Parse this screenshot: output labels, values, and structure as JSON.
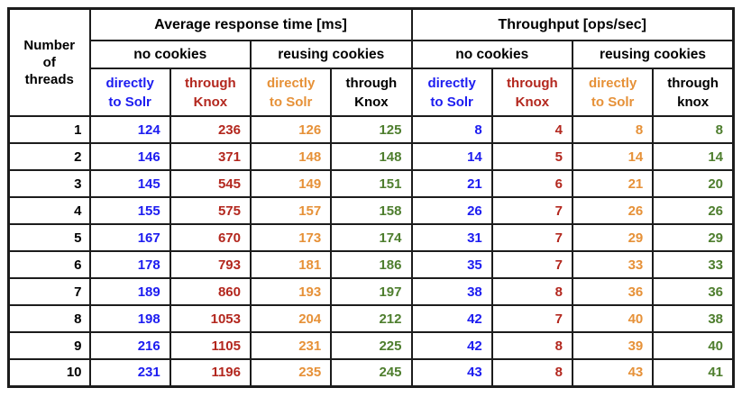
{
  "colors": {
    "blue_direct_solr": "#1c1cf0",
    "red_through_knox": "#b3271e",
    "orange_direct_solr_cookies": "#e69138",
    "green_through_knox_cookies": "#4e7e2e",
    "header_black": "#000000",
    "border": "#1c1c1c"
  },
  "table": {
    "corner_header": {
      "line1": "Number",
      "line2": "of",
      "line3": "threads"
    },
    "groups": [
      {
        "label": "Average response time [ms]"
      },
      {
        "label": "Throughput [ops/sec]"
      }
    ],
    "subgroups": [
      "no cookies",
      "reusing cookies",
      "no cookies",
      "reusing cookies"
    ],
    "columns": [
      {
        "id": "rt-nocookies-direct",
        "label_line1": "directly",
        "label_line2": "to Solr",
        "header_color": "#1c1cf0",
        "data_color": "#1c1cf0"
      },
      {
        "id": "rt-nocookies-knox",
        "label_line1": "through",
        "label_line2": "Knox",
        "header_color": "#b3271e",
        "data_color": "#b3271e"
      },
      {
        "id": "rt-cookies-direct",
        "label_line1": "directly",
        "label_line2": "to Solr",
        "header_color": "#e69138",
        "data_color": "#e69138"
      },
      {
        "id": "rt-cookies-knox",
        "label_line1": "through",
        "label_line2": "Knox",
        "header_color": "#000000",
        "data_color": "#4e7e2e"
      },
      {
        "id": "tp-nocookies-direct",
        "label_line1": "directly",
        "label_line2": "to Solr",
        "header_color": "#1c1cf0",
        "data_color": "#1c1cf0"
      },
      {
        "id": "tp-nocookies-knox",
        "label_line1": "through",
        "label_line2": "Knox",
        "header_color": "#b3271e",
        "data_color": "#b3271e"
      },
      {
        "id": "tp-cookies-direct",
        "label_line1": "directly",
        "label_line2": "to Solr",
        "header_color": "#e69138",
        "data_color": "#e69138"
      },
      {
        "id": "tp-cookies-knox",
        "label_line1": "through",
        "label_line2": "knox",
        "header_color": "#000000",
        "data_color": "#4e7e2e"
      }
    ],
    "rows": [
      {
        "threads": "1",
        "values": [
          "124",
          "236",
          "126",
          "125",
          "8",
          "4",
          "8",
          "8"
        ]
      },
      {
        "threads": "2",
        "values": [
          "146",
          "371",
          "148",
          "148",
          "14",
          "5",
          "14",
          "14"
        ]
      },
      {
        "threads": "3",
        "values": [
          "145",
          "545",
          "149",
          "151",
          "21",
          "6",
          "21",
          "20"
        ]
      },
      {
        "threads": "4",
        "values": [
          "155",
          "575",
          "157",
          "158",
          "26",
          "7",
          "26",
          "26"
        ]
      },
      {
        "threads": "5",
        "values": [
          "167",
          "670",
          "173",
          "174",
          "31",
          "7",
          "29",
          "29"
        ]
      },
      {
        "threads": "6",
        "values": [
          "178",
          "793",
          "181",
          "186",
          "35",
          "7",
          "33",
          "33"
        ]
      },
      {
        "threads": "7",
        "values": [
          "189",
          "860",
          "193",
          "197",
          "38",
          "8",
          "36",
          "36"
        ]
      },
      {
        "threads": "8",
        "values": [
          "198",
          "1053",
          "204",
          "212",
          "42",
          "7",
          "40",
          "38"
        ]
      },
      {
        "threads": "9",
        "values": [
          "216",
          "1105",
          "231",
          "225",
          "42",
          "8",
          "39",
          "40"
        ]
      },
      {
        "threads": "10",
        "values": [
          "231",
          "1196",
          "235",
          "245",
          "43",
          "8",
          "43",
          "41"
        ]
      }
    ]
  },
  "chart_data": {
    "type": "table",
    "row_header": "Number of threads",
    "column_groups": [
      {
        "label": "Average response time [ms]",
        "subgroups": [
          "no cookies",
          "reusing cookies"
        ]
      },
      {
        "label": "Throughput [ops/sec]",
        "subgroups": [
          "no cookies",
          "reusing cookies"
        ]
      }
    ],
    "column_labels": [
      "directly to Solr",
      "through Knox",
      "directly to Solr",
      "through Knox",
      "directly to Solr",
      "through Knox",
      "directly to Solr",
      "through knox"
    ],
    "threads": [
      1,
      2,
      3,
      4,
      5,
      6,
      7,
      8,
      9,
      10
    ],
    "avg_response_time_ms": {
      "no_cookies_directly_to_solr": [
        124,
        146,
        145,
        155,
        167,
        178,
        189,
        198,
        216,
        231
      ],
      "no_cookies_through_knox": [
        236,
        371,
        545,
        575,
        670,
        793,
        860,
        1053,
        1105,
        1196
      ],
      "reusing_cookies_directly_to_solr": [
        126,
        148,
        149,
        157,
        173,
        181,
        193,
        204,
        231,
        235
      ],
      "reusing_cookies_through_knox": [
        125,
        148,
        151,
        158,
        174,
        186,
        197,
        212,
        225,
        245
      ]
    },
    "throughput_ops_sec": {
      "no_cookies_directly_to_solr": [
        8,
        14,
        21,
        26,
        31,
        35,
        38,
        42,
        42,
        43
      ],
      "no_cookies_through_knox": [
        4,
        5,
        6,
        7,
        7,
        7,
        8,
        7,
        8,
        8
      ],
      "reusing_cookies_directly_to_solr": [
        8,
        14,
        21,
        26,
        29,
        33,
        36,
        40,
        39,
        43
      ],
      "reusing_cookies_through_knox": [
        8,
        14,
        20,
        26,
        29,
        33,
        36,
        38,
        40,
        41
      ]
    }
  }
}
